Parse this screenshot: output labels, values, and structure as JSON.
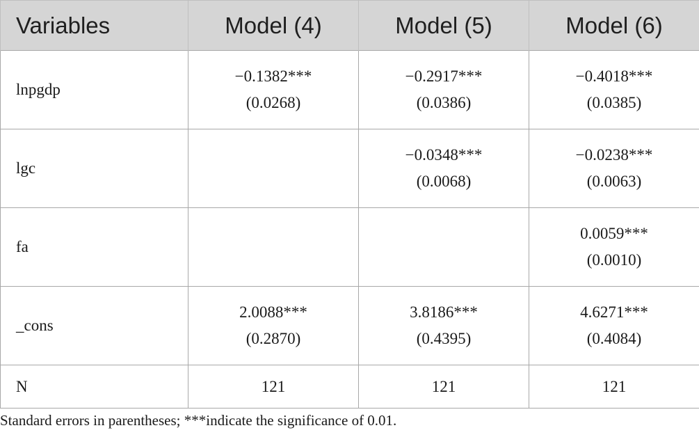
{
  "table": {
    "headers": [
      "Variables",
      "Model (4)",
      "Model (5)",
      "Model (6)"
    ],
    "rows": [
      {
        "variable": "lnpgdp",
        "cells": [
          {
            "coef": "−0.1382***",
            "se": "(0.0268)"
          },
          {
            "coef": "−0.2917***",
            "se": "(0.0386)"
          },
          {
            "coef": "−0.4018***",
            "se": "(0.0385)"
          }
        ]
      },
      {
        "variable": "lgc",
        "cells": [
          {
            "coef": "",
            "se": ""
          },
          {
            "coef": "−0.0348***",
            "se": "(0.0068)"
          },
          {
            "coef": "−0.0238***",
            "se": "(0.0063)"
          }
        ]
      },
      {
        "variable": "fa",
        "cells": [
          {
            "coef": "",
            "se": ""
          },
          {
            "coef": "",
            "se": ""
          },
          {
            "coef": "0.0059***",
            "se": "(0.0010)"
          }
        ]
      },
      {
        "variable": "_cons",
        "cells": [
          {
            "coef": "2.0088***",
            "se": "(0.2870)"
          },
          {
            "coef": "3.8186***",
            "se": "(0.4395)"
          },
          {
            "coef": "4.6271***",
            "se": "(0.4084)"
          }
        ]
      }
    ],
    "n_row": {
      "label": "N",
      "values": [
        "121",
        "121",
        "121"
      ]
    }
  },
  "note": "Standard errors in parentheses; ***indicate the significance of 0.01.",
  "colors": {
    "header_background": "#d5d5d5",
    "border": "#a8a8a8",
    "text": "#1a1a1a"
  }
}
